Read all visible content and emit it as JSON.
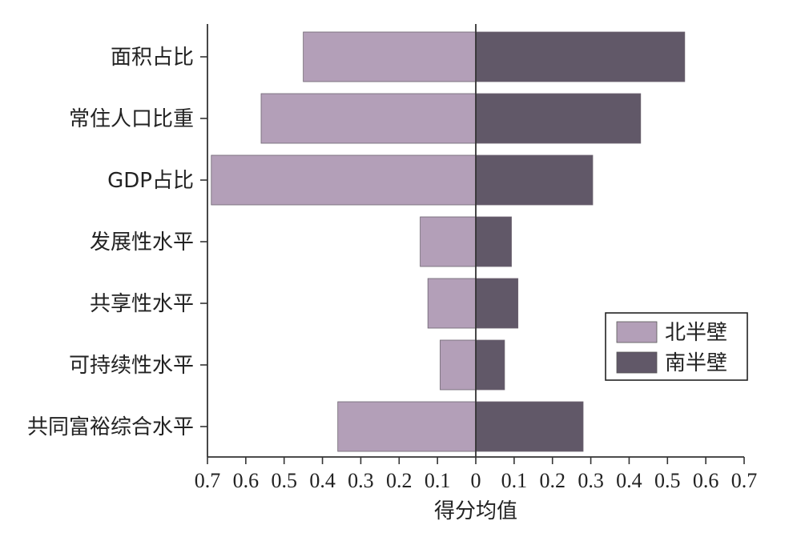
{
  "chart_data": {
    "type": "bar",
    "orientation": "horizontal-diverging",
    "categories": [
      "面积占比",
      "常住人口比重",
      "GDP占比",
      "发展性水平",
      "共享性水平",
      "可持续性水平",
      "共同富裕综合水平"
    ],
    "series": [
      {
        "name": "北半壁",
        "values": [
          0.45,
          0.56,
          0.69,
          0.145,
          0.125,
          0.093,
          0.36
        ],
        "color": "#b39fb8",
        "side": "left"
      },
      {
        "name": "南半壁",
        "values": [
          0.545,
          0.43,
          0.305,
          0.093,
          0.11,
          0.075,
          0.28
        ],
        "color": "#615868",
        "side": "right"
      }
    ],
    "xlabel": "得分均值",
    "ylabel": "",
    "xlim": [
      -0.7,
      0.7
    ],
    "tick_values": [
      -0.7,
      -0.6,
      -0.5,
      -0.4,
      -0.3,
      -0.2,
      -0.1,
      0,
      0.1,
      0.2,
      0.3,
      0.4,
      0.5,
      0.6,
      0.7
    ],
    "tick_labels": [
      "0.7",
      "0.6",
      "0.5",
      "0.4",
      "0.3",
      "0.2",
      "0.1",
      "0",
      "0.1",
      "0.2",
      "0.3",
      "0.4",
      "0.5",
      "0.6",
      "0.7"
    ],
    "grid": false,
    "legend_position": "right",
    "axis_color": "#333333"
  }
}
